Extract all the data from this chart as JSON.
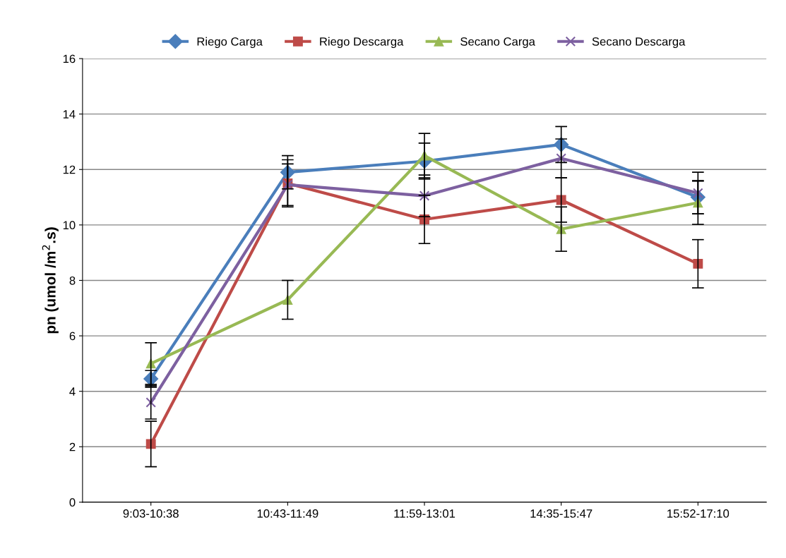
{
  "chart_data": {
    "type": "line",
    "ylabel": "pn (umol /m$^{2}$.s)",
    "categories": [
      "9:03-10:38",
      "10:43-11:49",
      "11:59-13:01",
      "14:35-15:47",
      "15:52-17:10"
    ],
    "series": [
      {
        "name": "Riego Carga",
        "color": "#4a7ebb",
        "marker": "diamond",
        "values": [
          4.45,
          11.9,
          12.3,
          12.9,
          11.0
        ],
        "errors": [
          0.3,
          0.6,
          0.65,
          0.65,
          0.6
        ]
      },
      {
        "name": "Riego Descarga",
        "color": "#be4b48",
        "marker": "square",
        "values": [
          2.1,
          11.5,
          10.2,
          10.9,
          8.6
        ],
        "errors": [
          0.82,
          0.85,
          0.87,
          0.8,
          0.87
        ]
      },
      {
        "name": "Secano Carga",
        "color": "#98b954",
        "marker": "triangle",
        "values": [
          5.0,
          7.3,
          12.5,
          9.85,
          10.8
        ],
        "errors": [
          0.75,
          0.7,
          0.8,
          0.8,
          0.78
        ]
      },
      {
        "name": "Secano Descarga",
        "color": "#7d60a0",
        "marker": "cross",
        "values": [
          3.6,
          11.45,
          11.05,
          12.4,
          11.15
        ],
        "errors": [
          0.6,
          0.75,
          0.75,
          0.7,
          0.75
        ]
      }
    ],
    "ylim": [
      0,
      16
    ],
    "yticks": [
      0,
      2,
      4,
      6,
      8,
      10,
      12,
      14,
      16
    ],
    "grid": "y",
    "legend": "top",
    "line_style": "solid"
  }
}
